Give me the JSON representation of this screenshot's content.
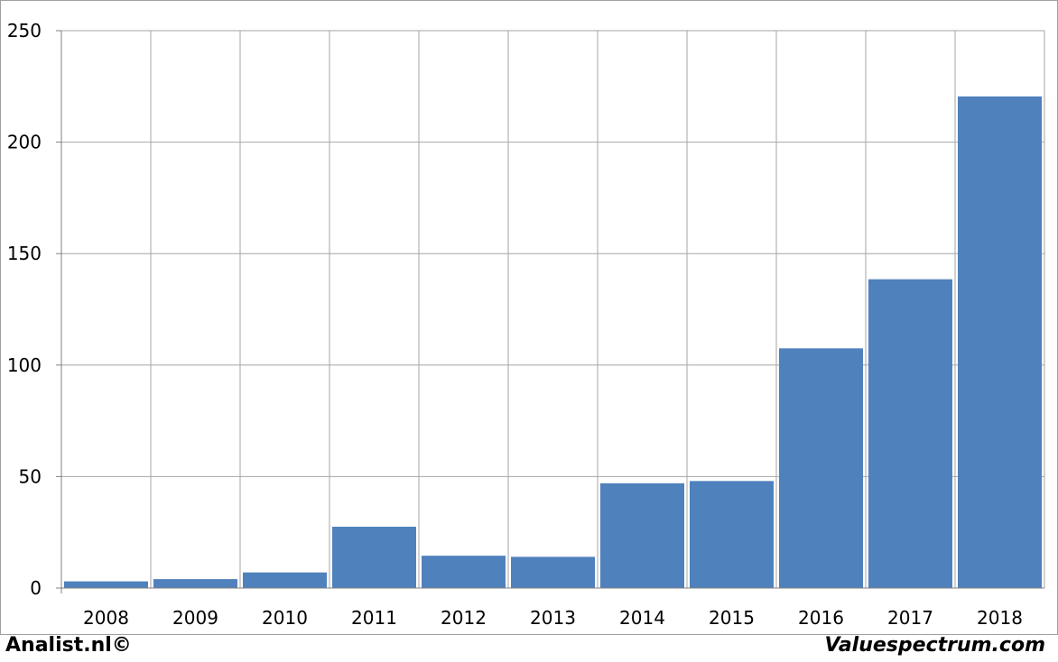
{
  "chart_data": {
    "type": "bar",
    "categories": [
      "2008",
      "2009",
      "2010",
      "2011",
      "2012",
      "2013",
      "2014",
      "2015",
      "2016",
      "2017",
      "2018"
    ],
    "values": [
      3,
      4,
      7,
      27.5,
      14.5,
      14,
      47,
      48,
      107.5,
      138.5,
      220.5
    ],
    "title": "",
    "xlabel": "",
    "ylabel": "",
    "ylim": [
      0,
      250
    ],
    "yticks": [
      0,
      50,
      100,
      150,
      200,
      250
    ],
    "grid": true,
    "bar_color": "#4f81bd",
    "grid_color": "#a6a6a6"
  },
  "footer": {
    "left": "Analist.nl©",
    "right": "Valuespectrum.com"
  }
}
